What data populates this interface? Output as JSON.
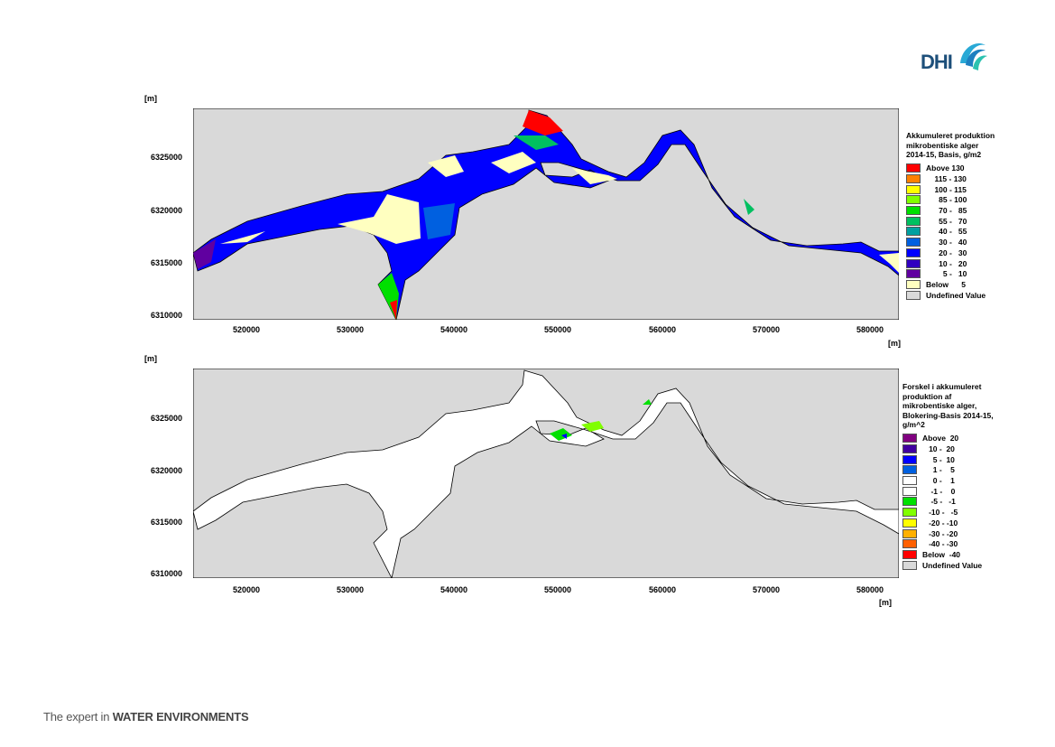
{
  "brand": {
    "logo": "DHI",
    "logo_icon": "dhi-wave-icon"
  },
  "footer": {
    "prefix": "The expert in",
    "emphasis": "WATER ENVIRONMENTS"
  },
  "colors": {
    "undefined_gray": "#d9d9d9",
    "land_fill": "#d9d9d9",
    "water_outline": "#000000"
  },
  "map1": {
    "y_unit": "[m]",
    "x_unit": "[m]",
    "yticks": [
      "6325000",
      "6320000",
      "6315000",
      "6310000"
    ],
    "xticks": [
      "520000",
      "530000",
      "540000",
      "550000",
      "560000",
      "570000",
      "580000"
    ],
    "legend": {
      "title": "Akkumuleret produktion\nmikrobentiske alger\n2014-15, Basis, g/m2",
      "items": [
        {
          "label": "Above 130",
          "color": "#ff0000"
        },
        {
          "label": "    115 - 130",
          "color": "#ff8000"
        },
        {
          "label": "    100 - 115",
          "color": "#ffff00"
        },
        {
          "label": "      85 - 100",
          "color": "#80ff00"
        },
        {
          "label": "      70 -   85",
          "color": "#00e000"
        },
        {
          "label": "      55 -   70",
          "color": "#00c060"
        },
        {
          "label": "      40 -   55",
          "color": "#00a0a0"
        },
        {
          "label": "      30 -   40",
          "color": "#0060e0"
        },
        {
          "label": "      20 -   30",
          "color": "#0000ff"
        },
        {
          "label": "      10 -   20",
          "color": "#3000c0"
        },
        {
          "label": "        5 -   10",
          "color": "#6000a0"
        },
        {
          "label": "Below      5",
          "color": "#ffffc0"
        },
        {
          "label": "Undefined Value",
          "color": "#d9d9d9"
        }
      ]
    }
  },
  "map2": {
    "y_unit": "[m]",
    "x_unit": "[m]",
    "yticks": [
      "6325000",
      "6320000",
      "6315000",
      "6310000"
    ],
    "xticks": [
      "520000",
      "530000",
      "540000",
      "550000",
      "560000",
      "570000",
      "580000"
    ],
    "legend": {
      "title": "Forskel i akkumuleret\nproduktion af\nmikrobentiske alger,\nBlokering-Basis 2014-15,\ng/m^2",
      "items": [
        {
          "label": "Above  20",
          "color": "#800080"
        },
        {
          "label": "   10 -  20",
          "color": "#4000a0"
        },
        {
          "label": "     5 -  10",
          "color": "#0000ff"
        },
        {
          "label": "     1 -    5",
          "color": "#0060e0"
        },
        {
          "label": "     0 -    1",
          "color": "#ffffff"
        },
        {
          "label": "    -1 -    0",
          "color": "#ffffff"
        },
        {
          "label": "    -5 -   -1",
          "color": "#00e000"
        },
        {
          "label": "   -10 -   -5",
          "color": "#80ff00"
        },
        {
          "label": "   -20 - -10",
          "color": "#ffff00"
        },
        {
          "label": "   -30 - -20",
          "color": "#ffb000"
        },
        {
          "label": "   -40 - -30",
          "color": "#ff6000"
        },
        {
          "label": "Below  -40",
          "color": "#ff0000"
        },
        {
          "label": "Undefined Value",
          "color": "#d9d9d9"
        }
      ]
    }
  }
}
